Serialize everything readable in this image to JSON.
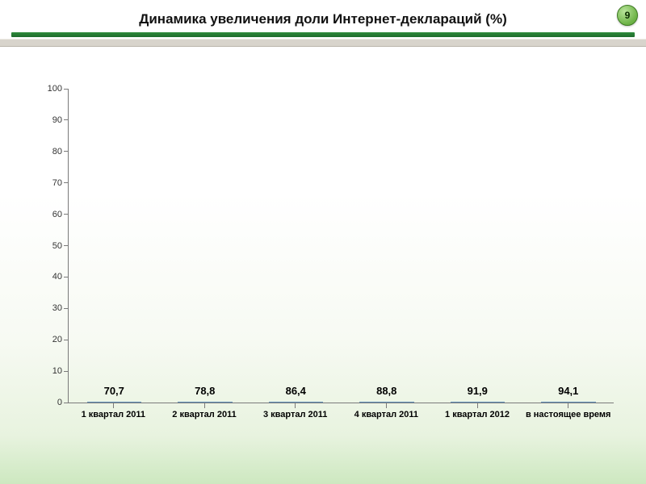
{
  "page_number": "9",
  "title": "Динамика увеличения доли Интернет-деклараций (%)",
  "chart": {
    "type": "bar",
    "categories": [
      "1 квартал 2011",
      "2 квартал 2011",
      "3 квартал 2011",
      "4 квартал 2011",
      "1 квартал 2012",
      "в настоящее время"
    ],
    "values": [
      70.7,
      78.8,
      86.4,
      88.8,
      91.9,
      94.1
    ],
    "value_labels": [
      "70,7",
      "78,8",
      "86,4",
      "88,8",
      "91,9",
      "94,1"
    ],
    "ylim": [
      0,
      100
    ],
    "ytick_step": 10,
    "bar_color": "#3f6d94",
    "axis_color": "#7a7a7a",
    "bar_width_ratio": 0.6,
    "value_label_fontsize": 13,
    "value_label_fontweight": "bold",
    "xlabel_fontsize": 11,
    "xlabel_fontweight": "bold",
    "ylabel_fontsize": 11,
    "title_fontsize": 17,
    "title_fontweight": "bold"
  },
  "colors": {
    "header_underline": "#2e8b3b",
    "separator": "#d8d4cc",
    "background_top": "#ffffff",
    "background_bottom": "#cde8c0",
    "page_badge": "#6cb245"
  }
}
